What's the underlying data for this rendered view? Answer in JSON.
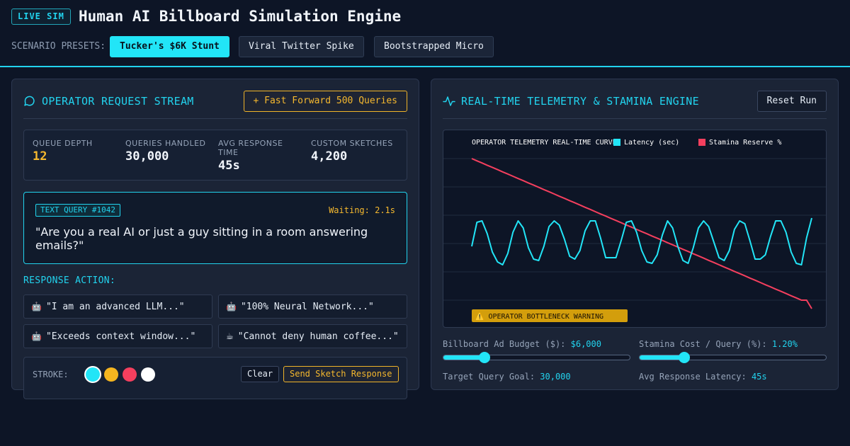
{
  "header": {
    "badge": "LIVE SIM",
    "title": "Human AI Billboard Simulation Engine",
    "presets_label": "SCENARIO PRESETS:",
    "presets": [
      {
        "label": "Tucker's $6K Stunt",
        "active": true
      },
      {
        "label": "Viral Twitter Spike",
        "active": false
      },
      {
        "label": "Bootstrapped Micro",
        "active": false
      }
    ]
  },
  "left_panel": {
    "title": "OPERATOR REQUEST STREAM",
    "icon": "message-bubble-icon",
    "fast_forward_label": "+ Fast Forward 500 Queries",
    "stats": [
      {
        "label": "QUEUE DEPTH",
        "value": "12"
      },
      {
        "label": "QUERIES HANDLED",
        "value": "30,000"
      },
      {
        "label": "AVG RESPONSE TIME",
        "value": "45s"
      },
      {
        "label": "CUSTOM SKETCHES",
        "value": "4,200"
      }
    ],
    "query": {
      "tag": "TEXT QUERY #1042",
      "waiting": "Waiting: 2.1s",
      "text": "\"Are you a real AI or just a guy sitting in a room answering emails?\""
    },
    "response_label": "RESPONSE ACTION:",
    "responses": [
      {
        "emoji": "🤖",
        "icon": "robot-icon",
        "label": "\"I am an advanced LLM...\""
      },
      {
        "emoji": "🤖",
        "icon": "robot-icon",
        "label": "\"100% Neural Network...\""
      },
      {
        "emoji": "🤖",
        "icon": "robot-icon",
        "label": "\"Exceeds context window...\""
      },
      {
        "emoji": "☕",
        "icon": "coffee-icon",
        "label": "\"Cannot deny human coffee...\""
      }
    ],
    "sketch": {
      "stroke_label": "STROKE:",
      "colors": [
        "#22e5f7",
        "#f5b51f",
        "#f43f5e",
        "#ffffff"
      ],
      "selected_color": "#22e5f7",
      "clear_label": "Clear",
      "send_label": "Send Sketch Response"
    }
  },
  "right_panel": {
    "title": "REAL-TIME TELEMETRY & STAMINA ENGINE",
    "icon": "activity-pulse-icon",
    "reset_label": "Reset Run",
    "chart_data": {
      "type": "line",
      "title": "OPERATOR TELEMETRY REAL-TIME CURVE",
      "series": [
        {
          "name": "Latency (sec)",
          "color": "#22e5f7",
          "values": [
            0.38,
            0.55,
            0.56,
            0.47,
            0.34,
            0.27,
            0.25,
            0.33,
            0.48,
            0.56,
            0.51,
            0.37,
            0.29,
            0.28,
            0.38,
            0.52,
            0.56,
            0.53,
            0.43,
            0.31,
            0.29,
            0.35,
            0.49,
            0.56,
            0.56,
            0.44,
            0.3,
            0.3,
            0.3,
            0.42,
            0.55,
            0.56,
            0.48,
            0.35,
            0.27,
            0.26,
            0.32,
            0.46,
            0.56,
            0.51,
            0.38,
            0.28,
            0.26,
            0.37,
            0.51,
            0.56,
            0.52,
            0.41,
            0.3,
            0.28,
            0.35,
            0.5,
            0.56,
            0.54,
            0.42,
            0.29,
            0.29,
            0.32,
            0.45,
            0.56,
            0.56,
            0.48,
            0.34,
            0.26,
            0.25,
            0.44,
            0.58
          ]
        },
        {
          "name": "Stamina Reserve %",
          "color": "#f43f5e",
          "values": [
            100,
            98.4,
            96.9,
            95.3,
            93.8,
            92.2,
            90.6,
            89.1,
            87.5,
            85.9,
            84.4,
            82.8,
            81.3,
            79.7,
            78.1,
            76.6,
            75.0,
            73.4,
            71.9,
            70.3,
            68.8,
            67.2,
            65.6,
            64.1,
            62.5,
            60.9,
            59.4,
            57.8,
            56.3,
            54.7,
            53.1,
            51.6,
            50.0,
            48.4,
            46.9,
            45.3,
            43.8,
            42.2,
            40.6,
            39.1,
            37.5,
            35.9,
            34.4,
            32.8,
            31.3,
            29.7,
            28.1,
            26.6,
            25.0,
            23.4,
            21.9,
            20.3,
            18.8,
            17.2,
            15.6,
            14.1,
            12.5,
            10.9,
            9.4,
            7.8,
            6.3,
            4.7,
            3.1,
            1.6,
            0,
            0,
            -6
          ]
        }
      ],
      "grid": true,
      "legend": "top",
      "warning": "⚠️ OPERATOR BOTTLENECK WARNING"
    },
    "controls": [
      {
        "label": "Billboard Ad Budget ($):",
        "value": "$6,000",
        "fraction": 0.22
      },
      {
        "label": "Stamina Cost / Query (%):",
        "value": "1.20%",
        "fraction": 0.24
      },
      {
        "label": "Target Query Goal:",
        "value": "30,000"
      },
      {
        "label": "Avg Response Latency:",
        "value": "45s"
      }
    ]
  },
  "colors": {
    "accent": "#22d3ee",
    "warning": "#f5b82e",
    "danger": "#f43f5e",
    "background": "#0d1526"
  }
}
